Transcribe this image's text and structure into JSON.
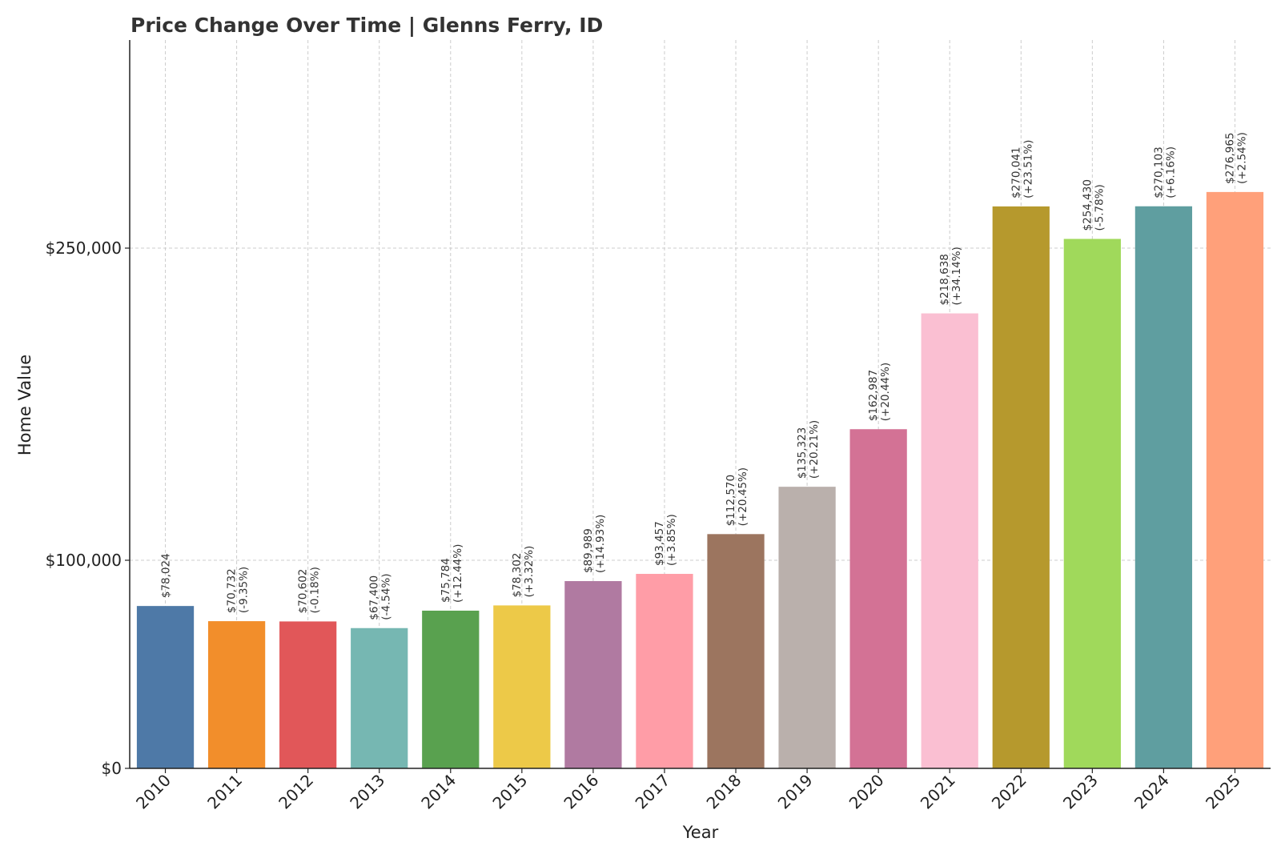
{
  "chart_data": {
    "type": "bar",
    "title": "Price Change Over Time | Glenns Ferry, ID",
    "xlabel": "Year",
    "ylabel": "Home Value",
    "ylim": [
      0,
      350000
    ],
    "yticks": [
      {
        "value": 0,
        "label": "$0"
      },
      {
        "value": 100000,
        "label": "$100,000"
      },
      {
        "value": 250000,
        "label": "$250,000"
      }
    ],
    "grid": true,
    "categories": [
      "2010",
      "2011",
      "2012",
      "2013",
      "2014",
      "2015",
      "2016",
      "2017",
      "2018",
      "2019",
      "2020",
      "2021",
      "2022",
      "2023",
      "2024",
      "2025"
    ],
    "values": [
      78024,
      70732,
      70602,
      67400,
      75784,
      78302,
      89989,
      93457,
      112570,
      135323,
      162987,
      218638,
      270041,
      254430,
      270103,
      276965
    ],
    "value_labels": [
      "$78,024",
      "$70,732",
      "$70,602",
      "$67,400",
      "$75,784",
      "$78,302",
      "$89,989",
      "$93,457",
      "$112,570",
      "$135,323",
      "$162,987",
      "$218,638",
      "$270,041",
      "$254,430",
      "$270,103",
      "$276,965"
    ],
    "change_labels": [
      "",
      "(-9.35%)",
      "(-0.18%)",
      "(-4.54%)",
      "(+12.44%)",
      "(+3.32%)",
      "(+14.93%)",
      "(+3.85%)",
      "(+20.45%)",
      "(+20.21%)",
      "(+20.44%)",
      "(+34.14%)",
      "(+23.51%)",
      "(-5.78%)",
      "(+6.16%)",
      "(+2.54%)"
    ],
    "colors": [
      "#4e79a7",
      "#f28e2b",
      "#e15759",
      "#76b7b2",
      "#59a14f",
      "#edc948",
      "#b07aa1",
      "#ff9da7",
      "#9c755f",
      "#bab0ac",
      "#d37295",
      "#fabfd2",
      "#b6992d",
      "#a0d95b",
      "#5f9ea0",
      "#ffa07a"
    ]
  }
}
